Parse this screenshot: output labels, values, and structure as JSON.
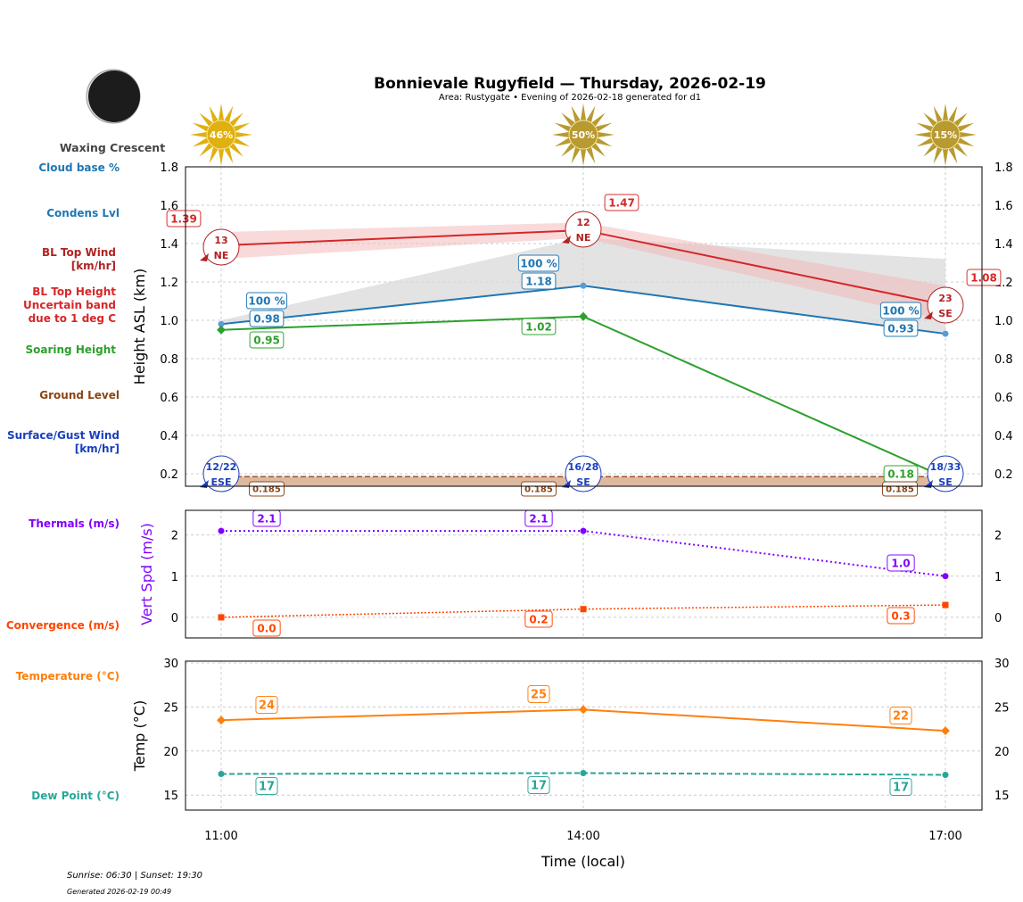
{
  "header": {
    "title": "Bonnievale Rugyfield — Thursday, 2026-02-19",
    "subtitle": "Area: Rustygate • Evening of 2026-02-18 generated for d1",
    "moon_phase": "Waxing Crescent"
  },
  "footer": {
    "sun_times": "Sunrise: 06:30 | Sunset: 19:30",
    "generated": "Generated 2026-02-19 00:49"
  },
  "sun_badges": [
    "46%",
    "50%",
    "15%"
  ],
  "left_labels": [
    {
      "text": "Cloud base %",
      "color": "#1f77b4"
    },
    {
      "text": "Condens Lvl",
      "color": "#1f77b4"
    },
    {
      "text": "BL Top Wind\n[km/hr]",
      "color": "#b22222"
    },
    {
      "text": "BL Top Height\nUncertain band\ndue to 1 deg C",
      "color": "#d62728"
    },
    {
      "text": "Soaring Height",
      "color": "#2ca02c"
    },
    {
      "text": "Ground Level",
      "color": "#8b4513"
    },
    {
      "text": "Surface/Gust Wind\n[km/hr]",
      "color": "#1a3fbf"
    },
    {
      "text": "Thermals (m/s)",
      "color": "#7f00ff"
    },
    {
      "text": "Convergence (m/s)",
      "color": "#ff4500"
    },
    {
      "text": "Temperature (°C)",
      "color": "#ff7f0e"
    },
    {
      "text": "Dew Point (°C)",
      "color": "#26a69a"
    }
  ],
  "chart_data": [
    {
      "type": "line",
      "ylabel": "Height ASL (km)",
      "x": [
        "11:00",
        "14:00",
        "17:00"
      ],
      "ylim": [
        0.135,
        1.8
      ],
      "yticks": [
        "0.2",
        "0.4",
        "0.6",
        "0.8",
        "1.0",
        "1.2",
        "1.4",
        "1.6",
        "1.8"
      ],
      "grid": true,
      "series": [
        {
          "key": "bl_top",
          "values": [
            1.39,
            1.47,
            1.08
          ],
          "labels": [
            "1.39",
            "1.47",
            "1.08"
          ],
          "color": "#d62728"
        },
        {
          "key": "bl_band_upper",
          "values": [
            1.46,
            1.51,
            1.18
          ],
          "color": "#f4b6b8"
        },
        {
          "key": "bl_band_lower",
          "values": [
            1.32,
            1.43,
            1.0
          ],
          "color": "#f4b6b8"
        },
        {
          "key": "condens_lvl",
          "values": [
            0.98,
            1.18,
            0.93
          ],
          "labels": [
            "0.98",
            "1.18",
            "0.93"
          ],
          "color": "#1f77b4"
        },
        {
          "key": "cloud_base_pct",
          "labels": [
            "100 %",
            "100 %",
            "100 %"
          ],
          "color": "#1f77b4"
        },
        {
          "key": "soaring_height",
          "values": [
            0.95,
            1.02,
            0.18
          ],
          "labels": [
            "0.95",
            "1.02",
            "0.18"
          ],
          "color": "#2ca02c"
        },
        {
          "key": "ground_level",
          "values": [
            0.185,
            0.185,
            0.185
          ],
          "labels": [
            "0.185",
            "0.185",
            "0.185"
          ],
          "color": "#a0522d"
        }
      ],
      "bl_top_wind": [
        {
          "speed": "13",
          "dir": "NE"
        },
        {
          "speed": "12",
          "dir": "NE"
        },
        {
          "speed": "23",
          "dir": "SE"
        }
      ],
      "surface_wind": [
        {
          "speed": "12/22",
          "dir": "ESE"
        },
        {
          "speed": "16/28",
          "dir": "SE"
        },
        {
          "speed": "18/33",
          "dir": "SE"
        }
      ]
    },
    {
      "type": "line",
      "ylabel": "Vert Spd (m/s)",
      "x": [
        "11:00",
        "14:00",
        "17:00"
      ],
      "ylim": [
        -0.5,
        2.6
      ],
      "yticks": [
        "0",
        "1",
        "2"
      ],
      "grid": true,
      "series": [
        {
          "key": "thermals",
          "values": [
            2.1,
            2.1,
            1.0
          ],
          "labels": [
            "2.1",
            "2.1",
            "1.0"
          ],
          "color": "#7f00ff"
        },
        {
          "key": "convergence",
          "values": [
            0.0,
            0.2,
            0.3
          ],
          "labels": [
            "0.0",
            "0.2",
            "0.3"
          ],
          "color": "#ff4500"
        }
      ]
    },
    {
      "type": "line",
      "ylabel": "Temp (°C)",
      "xlabel": "Time (local)",
      "x": [
        "11:00",
        "14:00",
        "17:00"
      ],
      "ylim": [
        13.3,
        30.2
      ],
      "yticks": [
        "15",
        "20",
        "25",
        "30"
      ],
      "grid": true,
      "series": [
        {
          "key": "temperature",
          "values": [
            23.5,
            24.7,
            22.3
          ],
          "labels": [
            "24",
            "25",
            "22"
          ],
          "color": "#ff7f0e"
        },
        {
          "key": "dew_point",
          "values": [
            17.4,
            17.5,
            17.3
          ],
          "labels": [
            "17",
            "17",
            "17"
          ],
          "color": "#26a69a"
        }
      ]
    }
  ]
}
